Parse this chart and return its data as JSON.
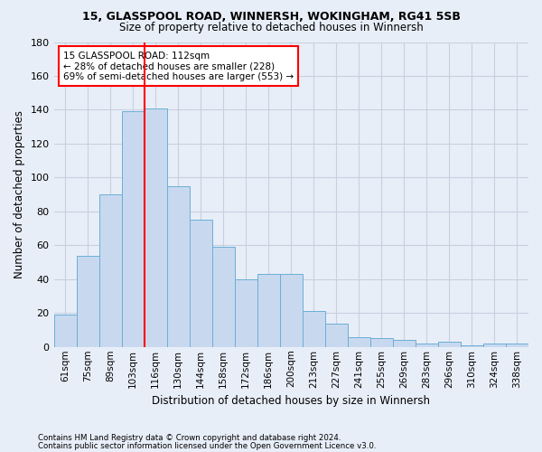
{
  "title1": "15, GLASSPOOL ROAD, WINNERSH, WOKINGHAM, RG41 5SB",
  "title2": "Size of property relative to detached houses in Winnersh",
  "xlabel": "Distribution of detached houses by size in Winnersh",
  "ylabel": "Number of detached properties",
  "footnote1": "Contains HM Land Registry data © Crown copyright and database right 2024.",
  "footnote2": "Contains public sector information licensed under the Open Government Licence v3.0.",
  "categories": [
    "61sqm",
    "75sqm",
    "89sqm",
    "103sqm",
    "116sqm",
    "130sqm",
    "144sqm",
    "158sqm",
    "172sqm",
    "186sqm",
    "200sqm",
    "213sqm",
    "227sqm",
    "241sqm",
    "255sqm",
    "269sqm",
    "283sqm",
    "296sqm",
    "310sqm",
    "324sqm",
    "338sqm"
  ],
  "values": [
    19,
    54,
    90,
    139,
    141,
    95,
    75,
    59,
    40,
    43,
    43,
    21,
    14,
    6,
    5,
    4,
    2,
    3,
    1,
    2,
    2
  ],
  "bar_color": "#c8d9ef",
  "bar_edge_color": "#6baed6",
  "vline_x": 3.5,
  "annotation_text1": "15 GLASSPOOL ROAD: 112sqm",
  "annotation_text2": "← 28% of detached houses are smaller (228)",
  "annotation_text3": "69% of semi-detached houses are larger (553) →",
  "annotation_box_color": "white",
  "annotation_box_edge_color": "red",
  "vline_color": "red",
  "ylim": [
    0,
    180
  ],
  "yticks": [
    0,
    20,
    40,
    60,
    80,
    100,
    120,
    140,
    160,
    180
  ],
  "grid_color": "#c8d0e0",
  "bg_color": "#e8eef8"
}
